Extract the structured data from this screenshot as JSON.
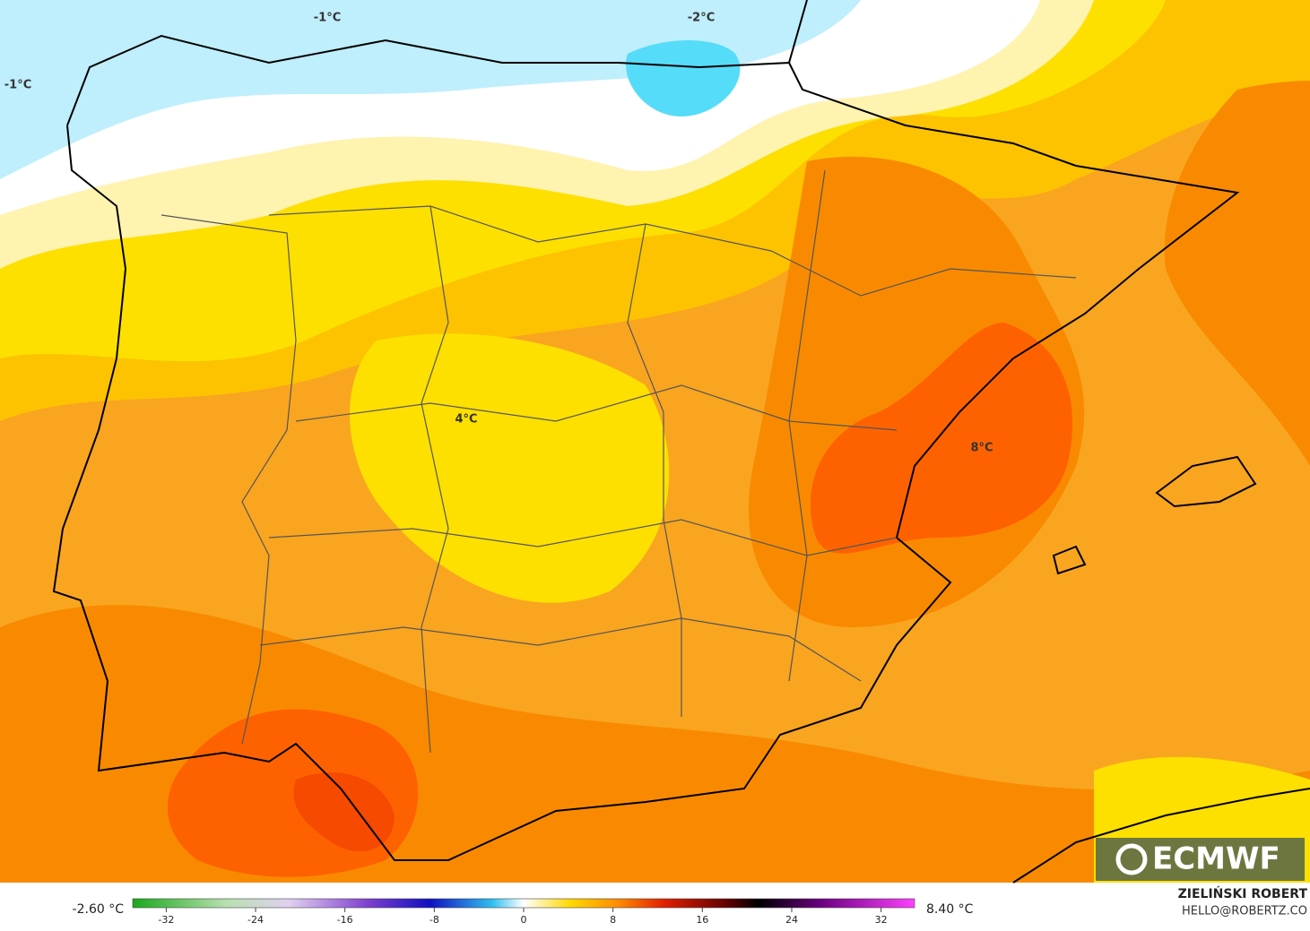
{
  "map": {
    "contour_labels": [
      "-1°C",
      "-2°C",
      "-1°C",
      "4°C",
      "8°C"
    ],
    "logo": "ECMWF"
  },
  "colorbar": {
    "min_label": "-2.60 °C",
    "max_label": "8.40 °C",
    "lim": [
      -35,
      35
    ],
    "ticks": [
      -32,
      -24,
      -16,
      -8,
      0,
      8,
      16,
      24,
      32
    ]
  },
  "credits": {
    "author": "ZIELIŃSKI ROBERT",
    "email": "HELLO@ROBERTZ.CO"
  }
}
